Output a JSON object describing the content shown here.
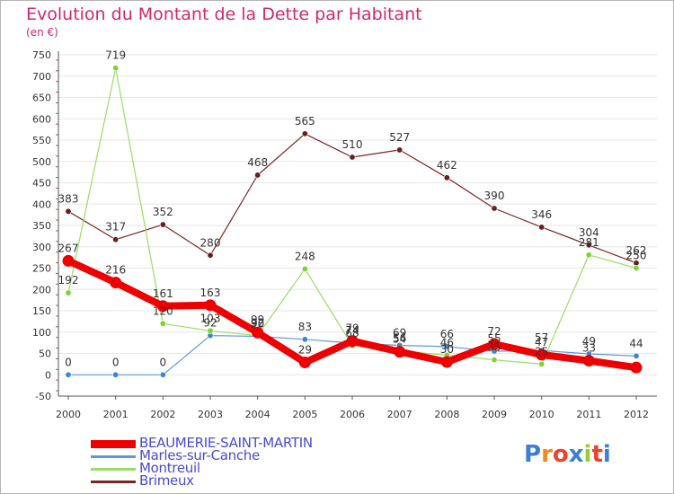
{
  "header": {
    "title": "Evolution du Montant de la Dette par Habitant",
    "unit": "(en €)"
  },
  "logo": {
    "text": "Proxiti",
    "letter_colors": [
      "#3a7fd4",
      "#f08a1c",
      "#e8452c",
      "#3a7fd4",
      "#9acd32",
      "#e8452c",
      "#3a7fd4"
    ]
  },
  "chart_data": {
    "type": "line",
    "title": "Evolution du Montant de la Dette par Habitant",
    "ylabel": "(en €)",
    "xlabel": "",
    "x": [
      "2000",
      "2001",
      "2002",
      "2003",
      "2004",
      "2005",
      "2006",
      "2007",
      "2008",
      "2009",
      "2010",
      "2011",
      "2012"
    ],
    "ylim": [
      -50,
      750
    ],
    "yticks": [
      -50,
      0,
      50,
      100,
      150,
      200,
      250,
      300,
      350,
      400,
      450,
      500,
      550,
      600,
      650,
      700,
      750
    ],
    "grid": "horizontal",
    "legend_position": "bottom-left",
    "series": [
      {
        "name": "BEAUMERIE-SAINT-MARTIN",
        "color": "#ee0000",
        "values": [
          267,
          216,
          161,
          163,
          99,
          29,
          79,
          54,
          30,
          72,
          47,
          33,
          17
        ],
        "labels": [
          "267",
          "216",
          "161",
          "163",
          "99",
          "29",
          "79",
          "54",
          "30",
          "72",
          "47",
          "33",
          ""
        ]
      },
      {
        "name": "Marles-sur-Canche",
        "color": "#5b9bd5",
        "values": [
          0,
          0,
          0,
          92,
          90,
          83,
          74,
          69,
          66,
          55,
          57,
          49,
          44
        ],
        "labels": [
          "0",
          "0",
          "0",
          "92",
          "90",
          "83",
          "74",
          "69",
          "66",
          "55",
          "57",
          "49",
          "44"
        ]
      },
      {
        "name": "Montreuil",
        "color": "#99dd66",
        "values": [
          192,
          719,
          120,
          103,
          92,
          248,
          68,
          56,
          46,
          35,
          25,
          281,
          250
        ],
        "labels": [
          "192",
          "719",
          "120",
          "103",
          "92",
          "248",
          "68",
          "56",
          "46",
          "35",
          "25",
          "281",
          "250"
        ]
      },
      {
        "name": "Brimeux",
        "color": "#7a2626",
        "values": [
          383,
          317,
          352,
          280,
          468,
          565,
          510,
          527,
          462,
          390,
          346,
          304,
          262
        ],
        "labels": [
          "383",
          "317",
          "352",
          "280",
          "468",
          "565",
          "510",
          "527",
          "462",
          "390",
          "346",
          "304",
          "262"
        ]
      }
    ]
  }
}
